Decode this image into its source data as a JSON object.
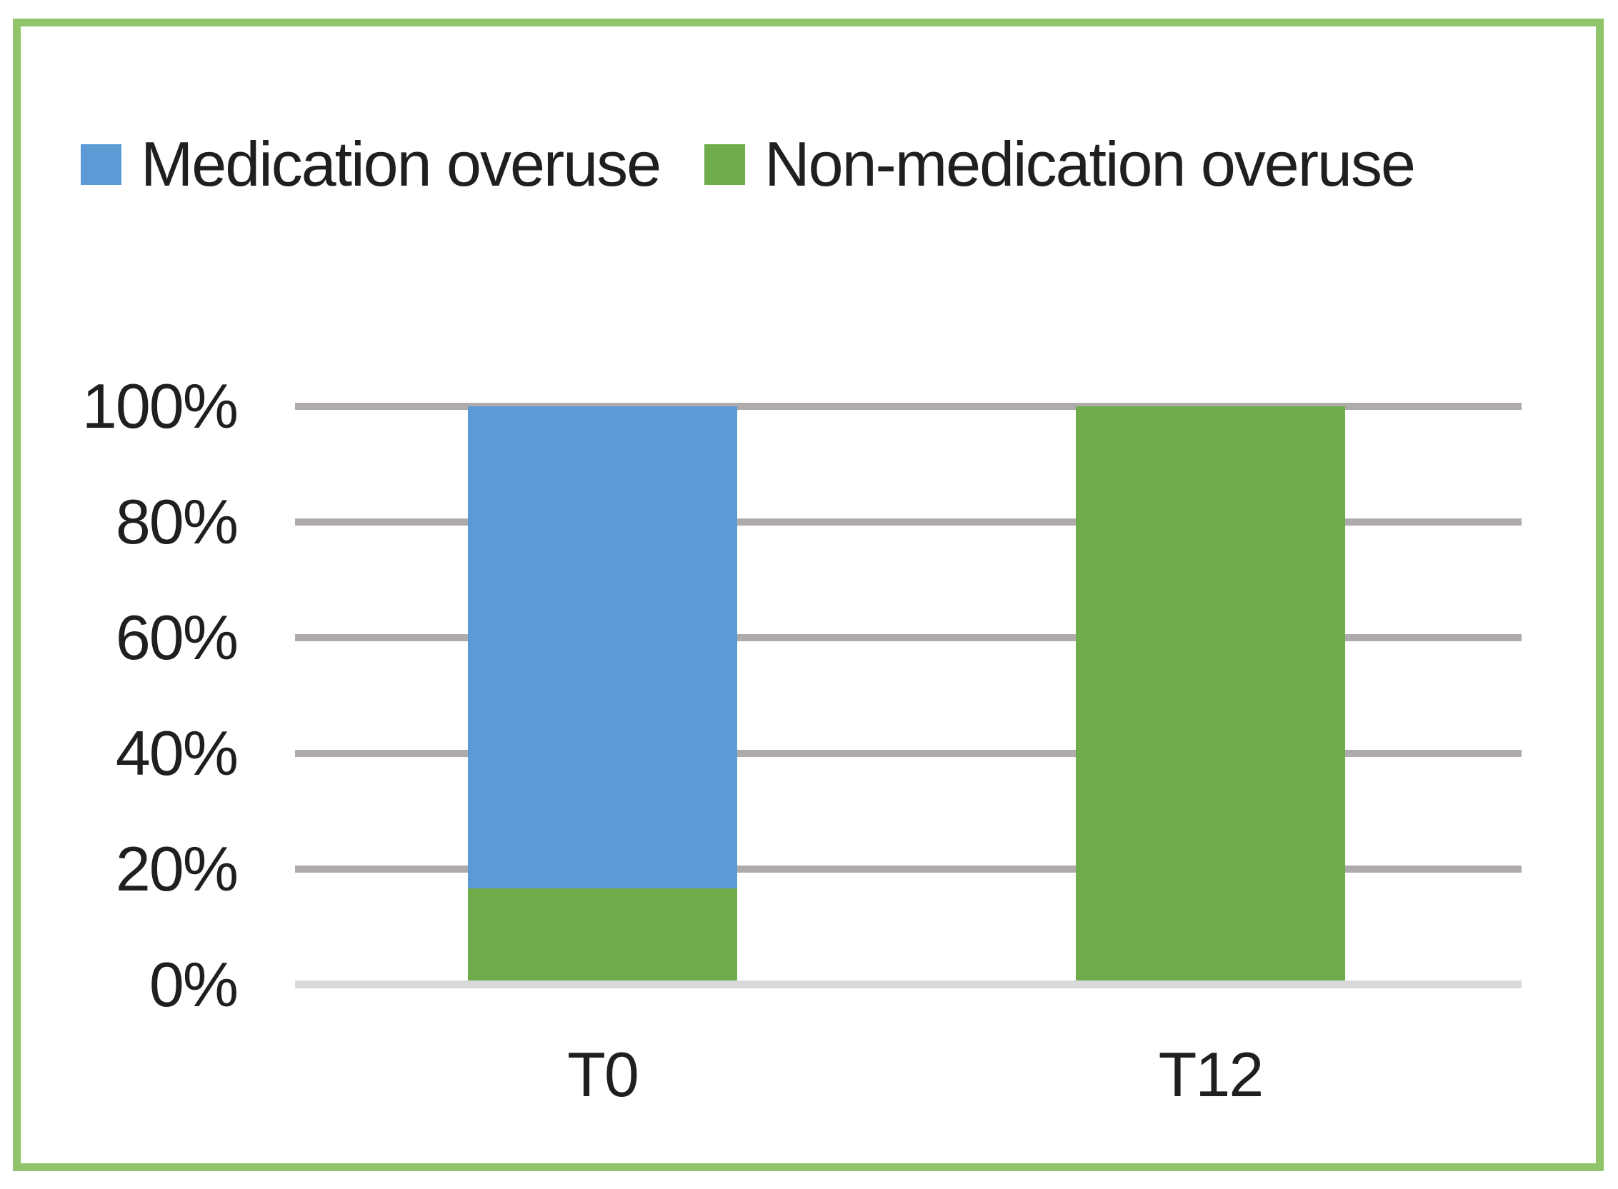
{
  "colors": {
    "bar_blue": "#5B9AD5",
    "bar_green": "#6FAC4B",
    "frame_green": "#8FC46A",
    "gridline": "#AFABAB",
    "axis_line": "#D9D9D9",
    "text": "#1F1F1F"
  },
  "chart_data": {
    "type": "bar",
    "stacked": true,
    "percent_stacked": true,
    "title": "",
    "xlabel": "",
    "ylabel": "",
    "categories": [
      "T0",
      "T12"
    ],
    "series": [
      {
        "name": "Medication overuse",
        "color": "#5B9AD5",
        "values": [
          84,
          0
        ]
      },
      {
        "name": "Non-medication overuse",
        "color": "#6FAC4B",
        "values": [
          16,
          100
        ]
      }
    ],
    "ylim": [
      0,
      100
    ],
    "ytick_step": 20,
    "ytick_labels": [
      "100%",
      "80%",
      "60%",
      "40%",
      "20%",
      "0%"
    ],
    "grid": true,
    "legend_position": "top"
  }
}
